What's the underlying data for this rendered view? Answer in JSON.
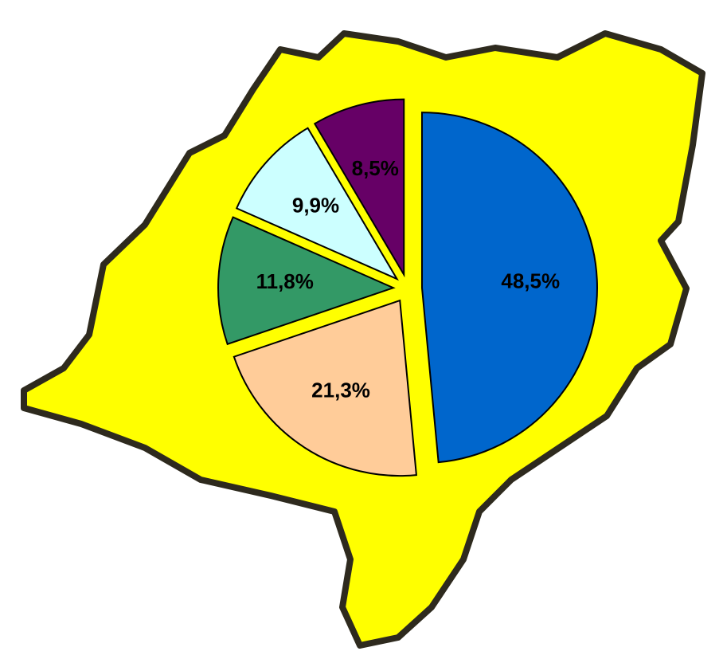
{
  "chart_data": {
    "type": "pie",
    "values": [
      48.5,
      21.3,
      11.8,
      9.9,
      8.5
    ],
    "value_labels": [
      "48,5%",
      "21,3%",
      "11,8%",
      "9,9%",
      "8,5%"
    ],
    "colors": [
      "#0066cc",
      "#ffcc99",
      "#339966",
      "#ccffff",
      "#660066"
    ]
  }
}
